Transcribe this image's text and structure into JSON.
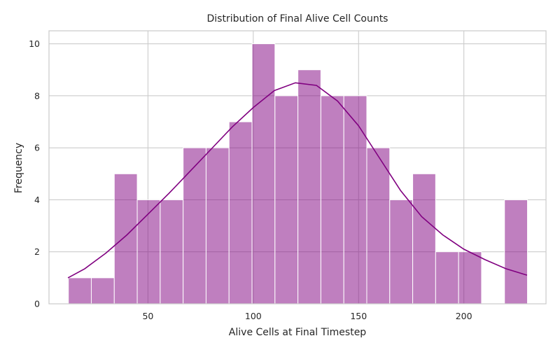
{
  "chart_data": {
    "type": "histogram",
    "title": "Distribution of Final Alive Cell Counts",
    "xlabel": "Alive Cells at Final Timestep",
    "ylabel": "Frequency",
    "xlim": [
      3,
      239
    ],
    "ylim": [
      0,
      10.5
    ],
    "x_ticks": [
      50,
      100,
      150,
      200
    ],
    "y_ticks": [
      0,
      2,
      4,
      6,
      8,
      10
    ],
    "grid": true,
    "bin_edges": [
      12.2,
      23.1,
      34.0,
      44.9,
      55.8,
      66.7,
      77.6,
      88.5,
      99.4,
      110.3,
      121.2,
      132.1,
      143.0,
      153.9,
      164.8,
      175.7,
      186.6,
      197.5,
      208.4,
      219.3,
      230.2
    ],
    "counts": [
      1,
      1,
      5,
      4,
      4,
      6,
      6,
      7,
      10,
      8,
      9,
      8,
      8,
      6,
      4,
      5,
      2,
      2,
      0,
      4
    ],
    "bar_color": "#800080",
    "bar_opacity": 0.5,
    "kde": {
      "color": "#800080",
      "x": [
        12,
        20,
        30,
        40,
        50,
        60,
        70,
        80,
        90,
        100,
        110,
        120,
        130,
        140,
        150,
        160,
        170,
        180,
        190,
        200,
        210,
        220,
        230
      ],
      "y": [
        1.0,
        1.35,
        1.95,
        2.65,
        3.45,
        4.25,
        5.1,
        5.95,
        6.8,
        7.55,
        8.2,
        8.5,
        8.4,
        7.8,
        6.85,
        5.6,
        4.35,
        3.35,
        2.65,
        2.1,
        1.7,
        1.35,
        1.1
      ]
    }
  }
}
